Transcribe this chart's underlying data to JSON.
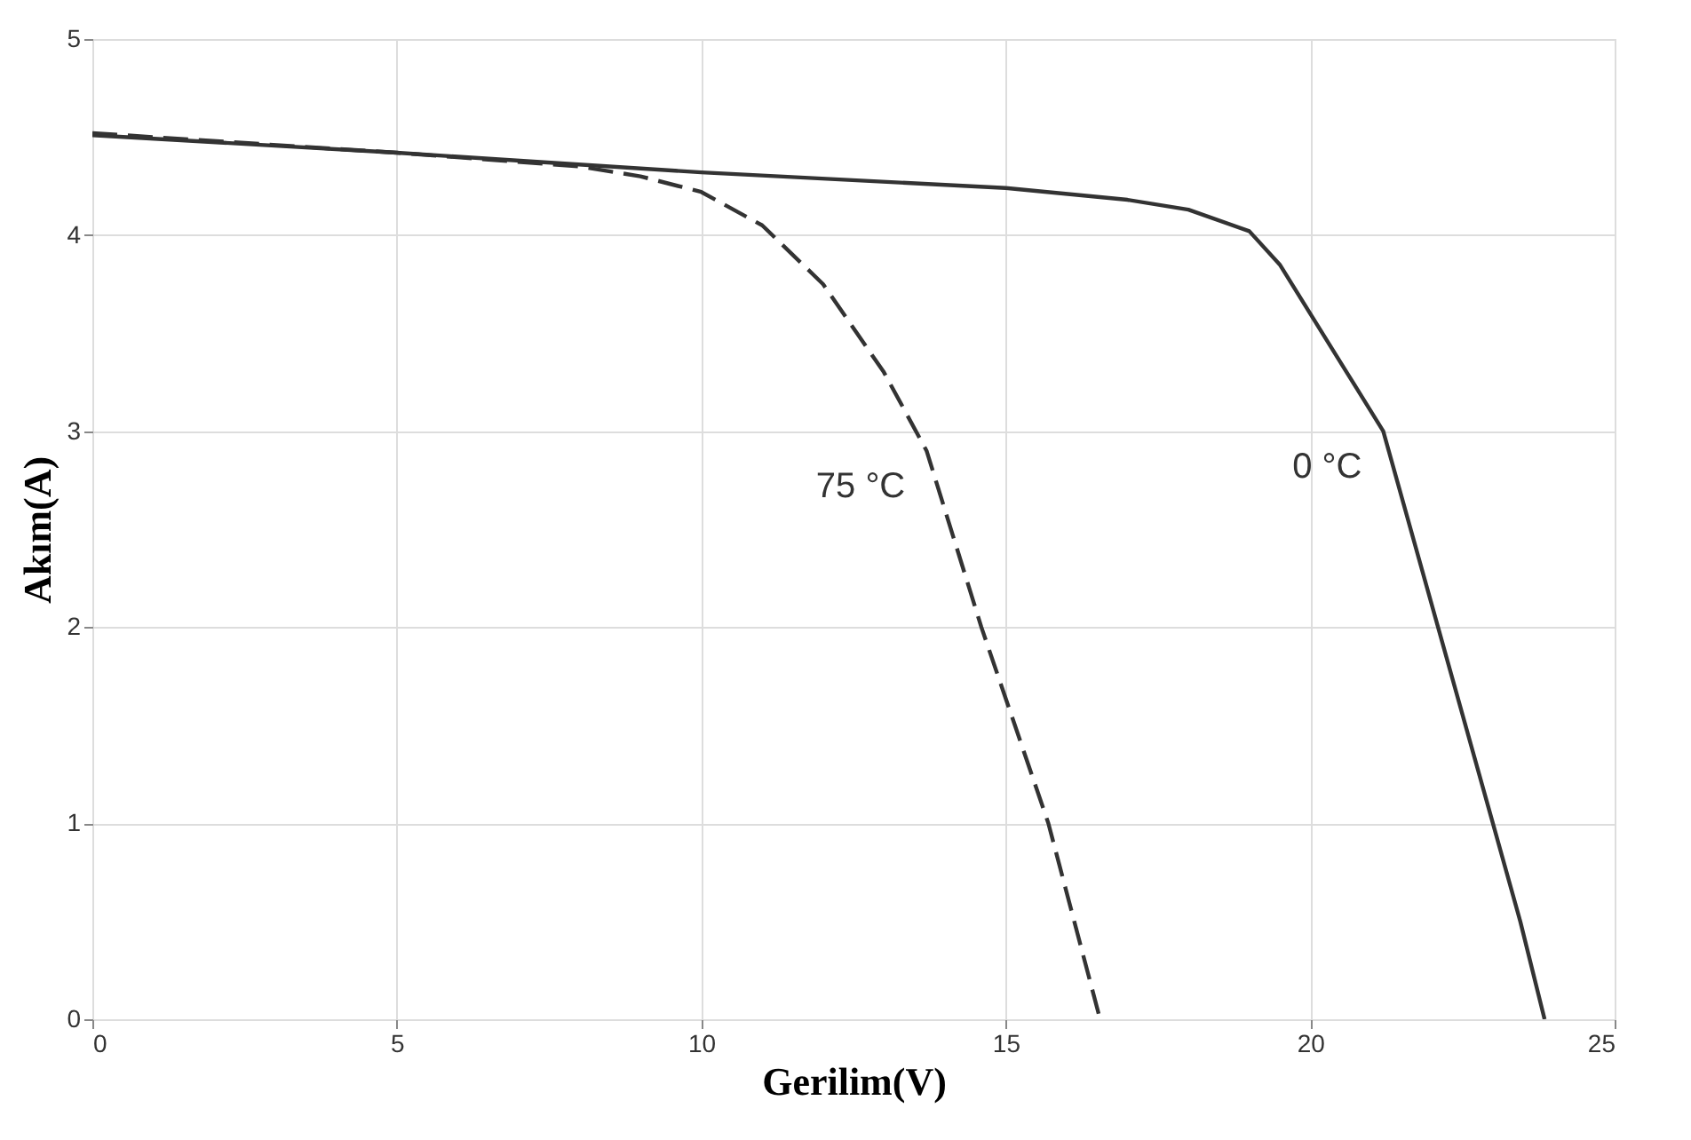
{
  "chart_data": {
    "type": "line",
    "xlabel": "Gerilim(V)",
    "ylabel": "Akım(A)",
    "xlim": [
      0,
      25
    ],
    "ylim": [
      0,
      5
    ],
    "xticks": [
      0,
      5,
      10,
      15,
      20,
      25
    ],
    "yticks": [
      0,
      1,
      2,
      3,
      4,
      5
    ],
    "grid": true,
    "series": [
      {
        "name": "0 °C",
        "color": "#333333",
        "line_style": "solid",
        "x": [
          0,
          5,
          10,
          15,
          17,
          18,
          19,
          19.5,
          20,
          20.6,
          21.2,
          22.1,
          23,
          23.45,
          23.85
        ],
        "values": [
          4.51,
          4.42,
          4.32,
          4.24,
          4.18,
          4.13,
          4.02,
          3.85,
          3.6,
          3.3,
          3.0,
          2.0,
          1.0,
          0.5,
          0
        ]
      },
      {
        "name": "75 °C",
        "color": "#333333",
        "line_style": "dashed",
        "x": [
          0,
          5,
          8,
          9,
          10,
          11,
          12,
          13,
          13.7,
          14.6,
          15.7,
          16.55
        ],
        "values": [
          4.52,
          4.42,
          4.35,
          4.3,
          4.22,
          4.05,
          3.75,
          3.3,
          2.9,
          2.0,
          1.0,
          0
        ]
      }
    ]
  }
}
